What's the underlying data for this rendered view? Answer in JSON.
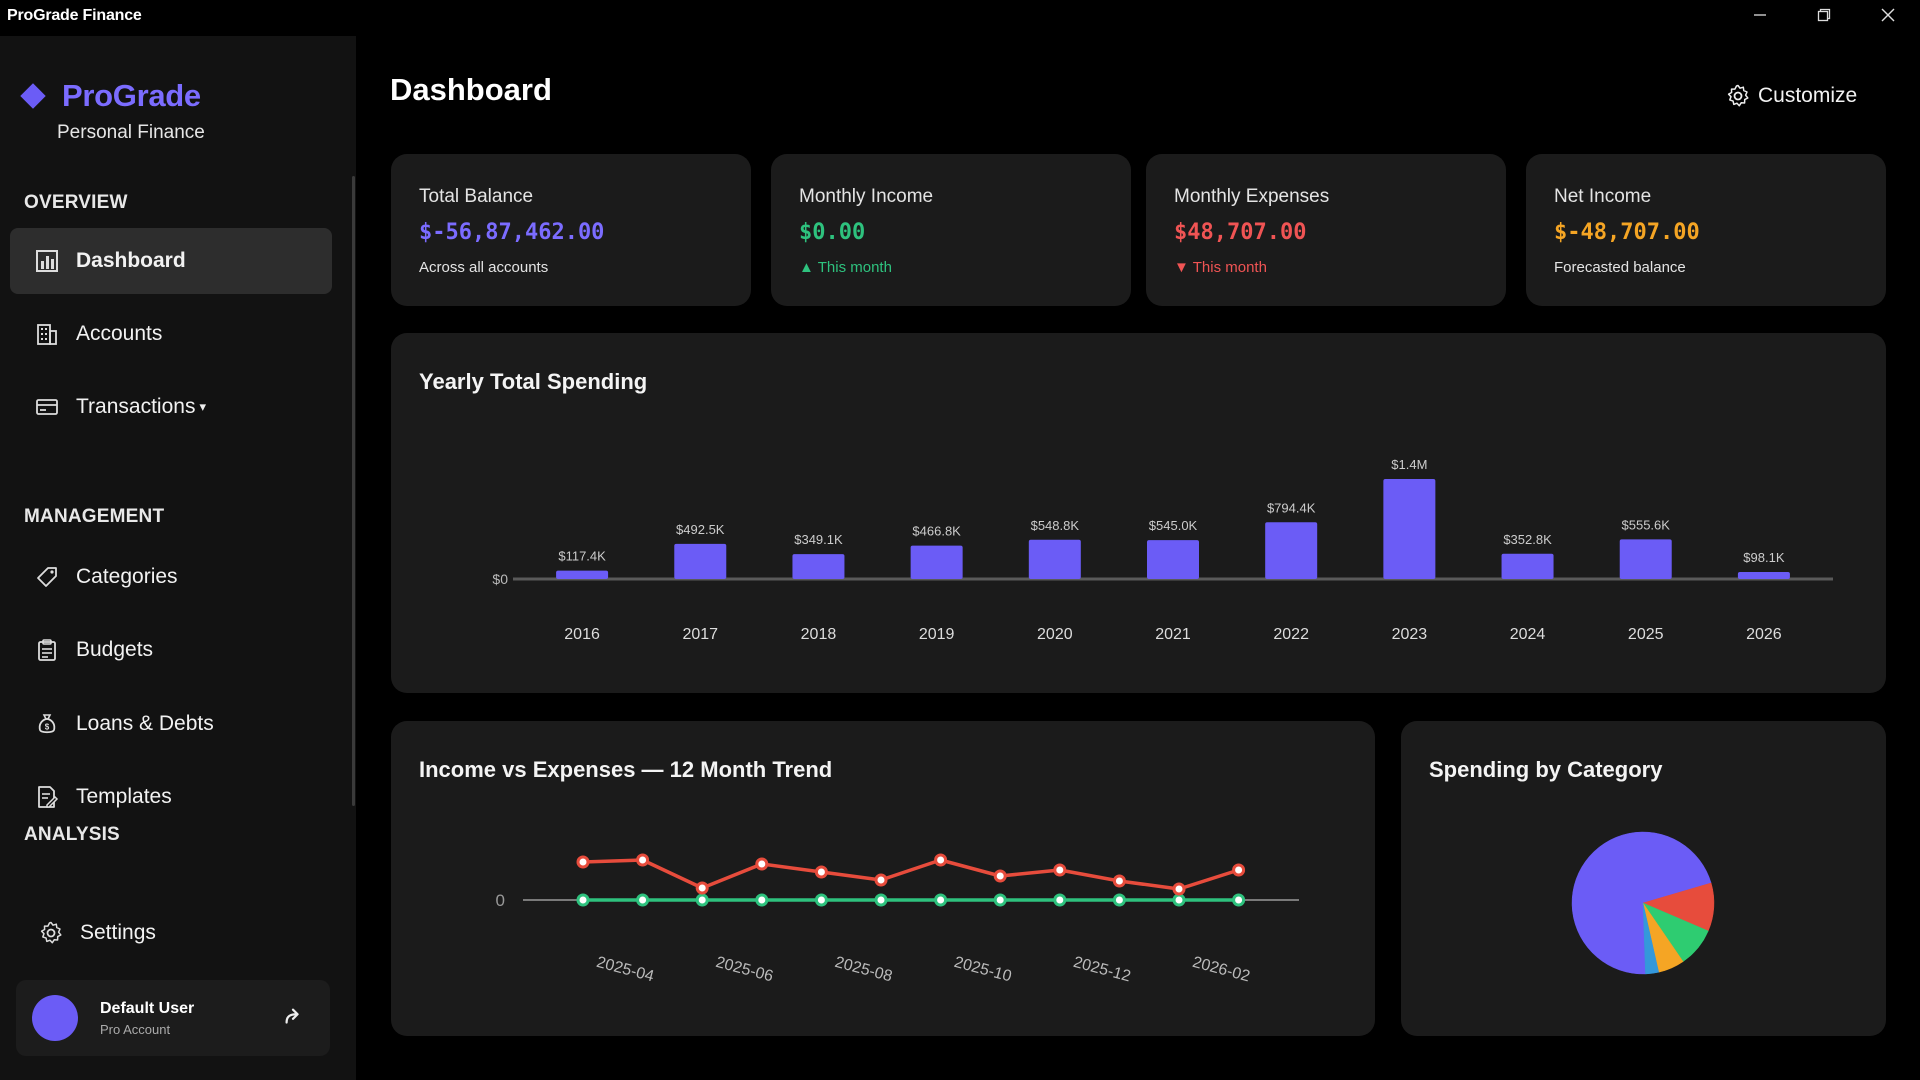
{
  "window": {
    "title": "ProGrade Finance"
  },
  "brand": {
    "name": "ProGrade",
    "subtitle": "Personal Finance"
  },
  "sidebar": {
    "sections": [
      "OVERVIEW",
      "MANAGEMENT",
      "ANALYSIS"
    ],
    "items": [
      {
        "label": "Dashboard",
        "icon": "bar-chart-icon",
        "active": true
      },
      {
        "label": "Accounts",
        "icon": "building-icon"
      },
      {
        "label": "Transactions",
        "icon": "card-icon",
        "caret": "▾"
      },
      {
        "label": "Categories",
        "icon": "tag-icon"
      },
      {
        "label": "Budgets",
        "icon": "clipboard-icon"
      },
      {
        "label": "Loans & Debts",
        "icon": "money-bag-icon"
      },
      {
        "label": "Templates",
        "icon": "document-edit-icon"
      },
      {
        "label": "Settings",
        "icon": "gear-icon"
      }
    ],
    "user": {
      "name": "Default User",
      "role": "Pro Account"
    }
  },
  "header": {
    "title": "Dashboard",
    "customize_label": "Customize"
  },
  "stats": [
    {
      "label": "Total Balance",
      "value": "$-56,87,462.00",
      "sub": "Across all accounts",
      "color": "#7b6cff"
    },
    {
      "label": "Monthly Income",
      "value": "$0.00",
      "sub": "▲ This month",
      "color": "#2ec27e",
      "sub_color": "#2ec27e"
    },
    {
      "label": "Monthly Expenses",
      "value": "$48,707.00",
      "sub": "▼ This month",
      "color": "#f05454",
      "sub_color": "#f05454"
    },
    {
      "label": "Net Income",
      "value": "$-48,707.00",
      "sub": "Forecasted balance",
      "color": "#f5a524"
    }
  ],
  "yearly": {
    "title": "Yearly Total Spending",
    "chart_data": {
      "type": "bar",
      "categories": [
        "2016",
        "2017",
        "2018",
        "2019",
        "2020",
        "2021",
        "2022",
        "2023",
        "2024",
        "2025",
        "2026"
      ],
      "values": [
        117400,
        492500,
        349100,
        466800,
        548800,
        545000,
        794400,
        1400000,
        352800,
        555600,
        98100
      ],
      "labels": [
        "$117.4K",
        "$492.5K",
        "$349.1K",
        "$466.8K",
        "$548.8K",
        "$545.0K",
        "$794.4K",
        "$1.4M",
        "$352.8K",
        "$555.6K",
        "$98.1K"
      ],
      "y_tick": "$0",
      "color": "#6b5cf6"
    }
  },
  "trend": {
    "title": "Income vs Expenses — 12 Month Trend",
    "chart_data": {
      "type": "line",
      "x_ticks": [
        "2025-04",
        "2025-06",
        "2025-08",
        "2025-10",
        "2025-12",
        "2026-02"
      ],
      "y_tick": "0",
      "series": [
        {
          "values": [
            0,
            0,
            0,
            0,
            0,
            0,
            0,
            0,
            0,
            0,
            0,
            0
          ],
          "color": "#2ec27e"
        },
        {
          "values": [
            38,
            40,
            12,
            36,
            28,
            20,
            40,
            24,
            30,
            19,
            11,
            30
          ],
          "color": "#e74c3c"
        }
      ]
    }
  },
  "category": {
    "title": "Spending by Category",
    "chart_data": {
      "type": "pie",
      "slices": [
        {
          "value": 71,
          "color": "#6b5cf6"
        },
        {
          "value": 11,
          "color": "#e74c3c"
        },
        {
          "value": 9,
          "color": "#2ecc71"
        },
        {
          "value": 6,
          "color": "#f5a524"
        },
        {
          "value": 3,
          "color": "#3498db"
        }
      ]
    }
  }
}
